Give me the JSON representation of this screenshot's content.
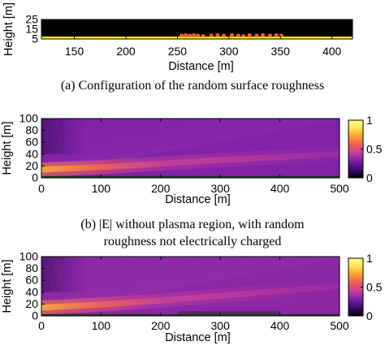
{
  "figure": {
    "captions": [
      {
        "label": "(a)",
        "text": "Configuration of the random surface roughness"
      },
      {
        "label": "(b)",
        "text": "|E| without plasma region, with random\nroughness not electrically charged"
      }
    ]
  },
  "chart_data": [
    {
      "id": "a",
      "type": "heatmap",
      "title": "",
      "xlabel": "Distance [m]",
      "ylabel": "Height [m]",
      "xlim": [
        118,
        420
      ],
      "ylim": [
        5,
        25
      ],
      "xticks": [
        150,
        200,
        250,
        300,
        350,
        400
      ],
      "yticks": [
        5,
        15,
        25
      ],
      "colors": {
        "background": "#000000",
        "ground": "#ffee00",
        "roughness": "#ff5a1e"
      },
      "ground_top": 7.5,
      "roughness_bumps": [
        {
          "x": 254,
          "height": 10
        },
        {
          "x": 258,
          "height": 10.5
        },
        {
          "x": 262,
          "height": 10
        },
        {
          "x": 266,
          "height": 10.5
        },
        {
          "x": 270,
          "height": 10
        },
        {
          "x": 275,
          "height": 9.5
        },
        {
          "x": 283,
          "height": 10
        },
        {
          "x": 289,
          "height": 10.5
        },
        {
          "x": 295,
          "height": 10
        },
        {
          "x": 303,
          "height": 10.5
        },
        {
          "x": 309,
          "height": 10
        },
        {
          "x": 314,
          "height": 9.5
        },
        {
          "x": 320,
          "height": 10.5
        },
        {
          "x": 327,
          "height": 10
        },
        {
          "x": 333,
          "height": 10.5
        },
        {
          "x": 340,
          "height": 10
        },
        {
          "x": 346,
          "height": 10.5
        },
        {
          "x": 351,
          "height": 10
        }
      ]
    },
    {
      "id": "b",
      "type": "heatmap",
      "title": "",
      "xlabel": "Distance [m]",
      "ylabel": "Height [m]",
      "xlim": [
        0,
        500
      ],
      "ylim": [
        0,
        100
      ],
      "xticks": [
        0,
        100,
        200,
        300,
        400,
        500
      ],
      "yticks": [
        0,
        20,
        40,
        60,
        80,
        100
      ],
      "colorbar": {
        "min": 0,
        "max": 1,
        "ticks": [
          0,
          0.5,
          1
        ],
        "tick_labels": [
          "0",
          "0.5",
          "1"
        ],
        "colormap": [
          "#000000",
          "#3a0a6e",
          "#7a1fa8",
          "#c43f9e",
          "#ef5a5a",
          "#ff9a2e",
          "#ffe24d",
          "#fffb90"
        ]
      },
      "field_magnitude": {
        "background": 0.3,
        "beam": [
          {
            "x": 0,
            "height": 14,
            "value": 0.75
          },
          {
            "x": 100,
            "height": 18,
            "value": 0.6
          },
          {
            "x": 200,
            "height": 24,
            "value": 0.45
          },
          {
            "x": 300,
            "height": 30,
            "value": 0.42
          },
          {
            "x": 400,
            "height": 35,
            "value": 0.38
          },
          {
            "x": 500,
            "height": 40,
            "value": 0.35
          }
        ]
      }
    },
    {
      "id": "c",
      "type": "heatmap",
      "title": "",
      "xlabel": "Distance [m]",
      "ylabel": "Height [m]",
      "xlim": [
        0,
        500
      ],
      "ylim": [
        0,
        100
      ],
      "xticks": [
        0,
        100,
        200,
        300,
        400,
        500
      ],
      "yticks": [
        0,
        20,
        40,
        60,
        80,
        100
      ],
      "colorbar": {
        "min": 0,
        "max": 1,
        "ticks": [
          0,
          0.5,
          1
        ],
        "tick_labels": [
          "0",
          "0.5",
          "1"
        ],
        "colormap": [
          "#000000",
          "#3a0a6e",
          "#7a1fa8",
          "#c43f9e",
          "#ef5a5a",
          "#ff9a2e",
          "#ffe24d",
          "#fffb90"
        ]
      },
      "field_magnitude": {
        "background": 0.32,
        "beam": [
          {
            "x": 0,
            "height": 14,
            "value": 0.75
          },
          {
            "x": 100,
            "height": 19,
            "value": 0.6
          },
          {
            "x": 200,
            "height": 26,
            "value": 0.45
          },
          {
            "x": 300,
            "height": 34,
            "value": 0.42
          },
          {
            "x": 400,
            "height": 42,
            "value": 0.38
          },
          {
            "x": 500,
            "height": 50,
            "value": 0.35
          }
        ]
      }
    }
  ]
}
